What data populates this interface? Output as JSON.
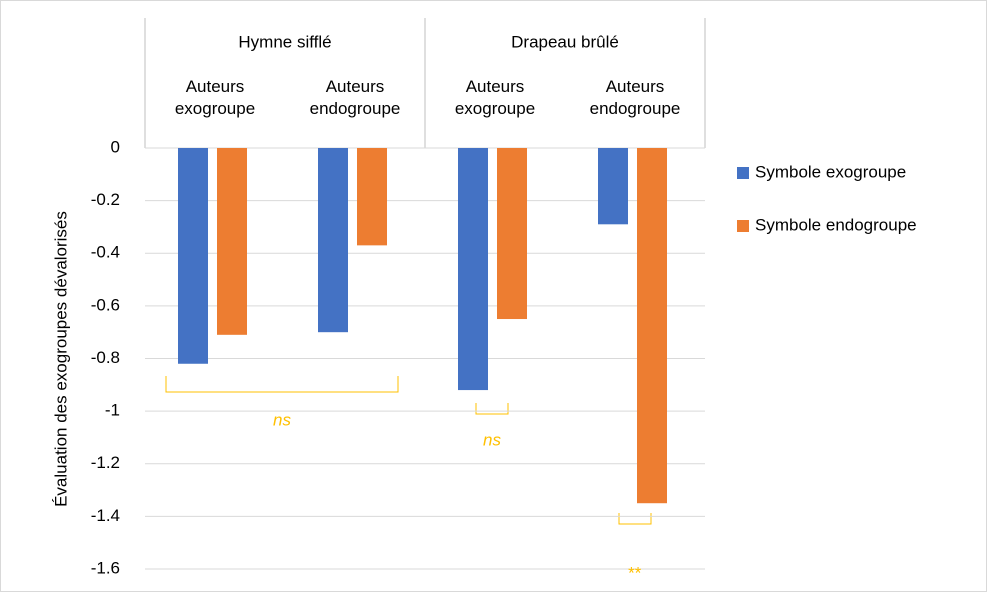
{
  "chart_data": {
    "type": "bar",
    "groups": [
      "Hymne sifflé",
      "Drapeau brûlé"
    ],
    "categories": [
      "Auteurs exogroupe",
      "Auteurs endogroupe",
      "Auteurs exogroupe",
      "Auteurs endogroupe"
    ],
    "series": [
      {
        "name": "Symbole exogroupe",
        "color": "#4472c4",
        "values": [
          -0.82,
          -0.7,
          -0.92,
          -0.29
        ]
      },
      {
        "name": "Symbole endogroupe",
        "color": "#ed7d31",
        "values": [
          -0.71,
          -0.37,
          -0.65,
          -1.35
        ]
      }
    ],
    "y_label": "Évaluation des exogroupes dévalorisés",
    "ylim": [
      -1.6,
      0
    ],
    "yticks": [
      0,
      -0.2,
      -0.4,
      -0.6,
      -0.8,
      -1,
      -1.2,
      -1.4,
      -1.6
    ],
    "grid": true,
    "legend": "right",
    "annotations": [
      "ns",
      "ns",
      "**"
    ],
    "annotation_color": "#ffc000"
  }
}
